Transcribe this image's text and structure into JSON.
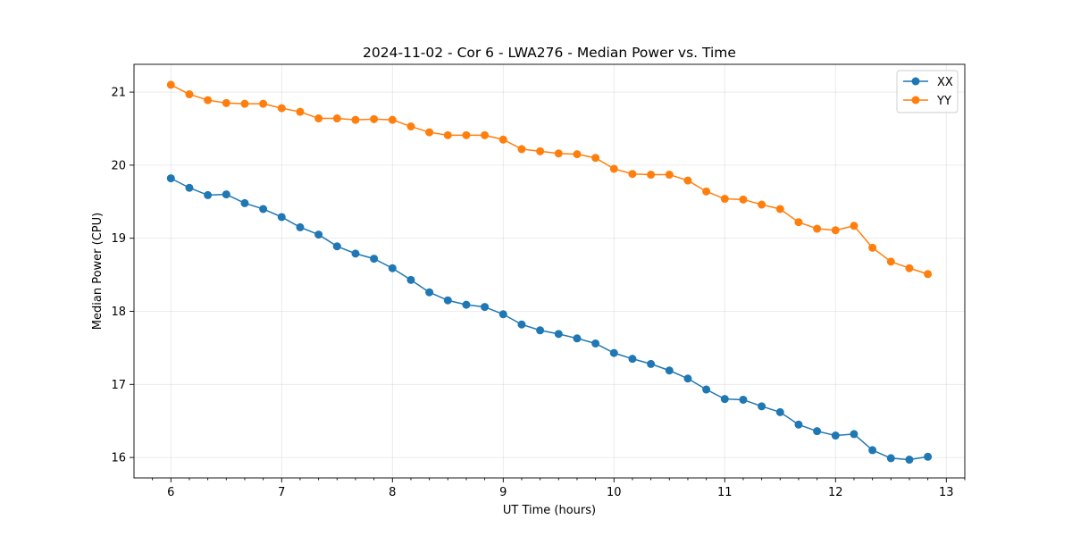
{
  "chart_data": {
    "type": "line",
    "title": "2024-11-02 - Cor 6 - LWA276 - Median Power vs. Time",
    "xlabel": "UT Time (hours)",
    "ylabel": "Median Power (CPU)",
    "xlim": [
      5.667,
      13.167
    ],
    "ylim": [
      15.72,
      21.38
    ],
    "xticks": [
      6,
      7,
      8,
      9,
      10,
      11,
      12,
      13
    ],
    "yticks": [
      16,
      17,
      18,
      19,
      20,
      21
    ],
    "grid": true,
    "legend_position": "top-right",
    "x": [
      6.0,
      6.1667,
      6.3333,
      6.5,
      6.6667,
      6.8333,
      7.0,
      7.1667,
      7.3333,
      7.5,
      7.6667,
      7.8333,
      8.0,
      8.1667,
      8.3333,
      8.5,
      8.6667,
      8.8333,
      9.0,
      9.1667,
      9.3333,
      9.5,
      9.6667,
      9.8333,
      10.0,
      10.1667,
      10.3333,
      10.5,
      10.6667,
      10.8333,
      11.0,
      11.1667,
      11.3333,
      11.5,
      11.6667,
      11.8333,
      12.0,
      12.1667,
      12.3333,
      12.5,
      12.6667,
      12.8333
    ],
    "series": [
      {
        "name": "XX",
        "color": "#1f77b4",
        "values": [
          19.82,
          19.69,
          19.59,
          19.6,
          19.48,
          19.4,
          19.29,
          19.15,
          19.05,
          18.89,
          18.79,
          18.72,
          18.59,
          18.43,
          18.26,
          18.15,
          18.09,
          18.06,
          17.96,
          17.82,
          17.74,
          17.69,
          17.63,
          17.56,
          17.43,
          17.35,
          17.28,
          17.19,
          17.08,
          16.93,
          16.8,
          16.79,
          16.7,
          16.62,
          16.45,
          16.36,
          16.3,
          16.32,
          16.1,
          15.99,
          15.97,
          16.01
        ]
      },
      {
        "name": "YY",
        "color": "#ff7f0e",
        "values": [
          21.1,
          20.97,
          20.89,
          20.85,
          20.84,
          20.84,
          20.78,
          20.73,
          20.64,
          20.64,
          20.62,
          20.63,
          20.62,
          20.53,
          20.45,
          20.41,
          20.41,
          20.41,
          20.35,
          20.22,
          20.19,
          20.16,
          20.15,
          20.1,
          19.95,
          19.88,
          19.87,
          19.87,
          19.79,
          19.64,
          19.54,
          19.53,
          19.46,
          19.4,
          19.22,
          19.13,
          19.11,
          19.17,
          18.87,
          18.68,
          18.59,
          18.51
        ]
      }
    ]
  }
}
